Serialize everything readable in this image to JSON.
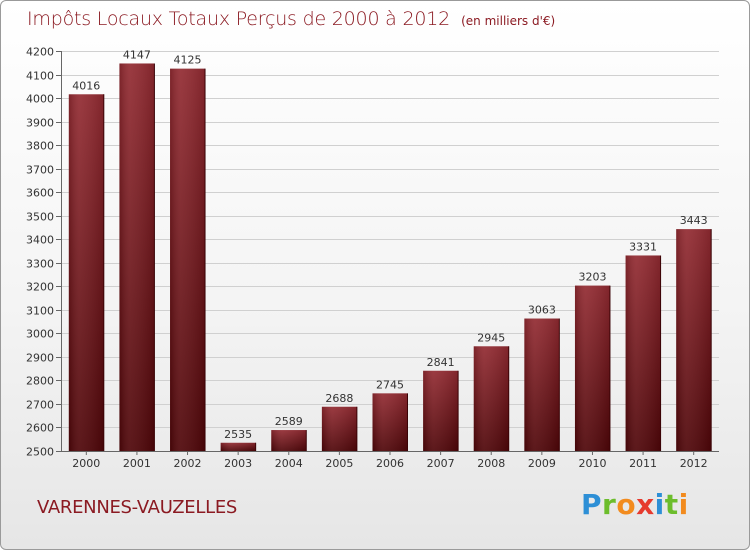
{
  "header": {
    "title": "Impôts Locaux Totaux Perçus de 2000 à 2012",
    "unit_note": "(en milliers d'€)"
  },
  "footer": {
    "commune": "VARENNES-VAUZELLES",
    "brand_letters": [
      "P",
      "r",
      "o",
      "x",
      "i",
      "t",
      "i"
    ],
    "brand_colors": [
      "#2d8fd6",
      "#6cbd2c",
      "#f28b1e",
      "#e63a2e",
      "#2d8fd6",
      "#6cbd2c",
      "#f28b1e"
    ]
  },
  "chart_data": {
    "type": "bar",
    "categories": [
      "2000",
      "2001",
      "2002",
      "2003",
      "2004",
      "2005",
      "2006",
      "2007",
      "2008",
      "2009",
      "2010",
      "2011",
      "2012"
    ],
    "values": [
      4016,
      4147,
      4125,
      2535,
      2589,
      2688,
      2745,
      2841,
      2945,
      3063,
      3203,
      3331,
      3443
    ],
    "ylim": [
      2500,
      4200
    ],
    "ytick_step": 100,
    "grid": true,
    "bar_color": "#7a1a20",
    "title": "Impôts Locaux Totaux Perçus de 2000 à 2012",
    "xlabel": "",
    "ylabel": ""
  }
}
